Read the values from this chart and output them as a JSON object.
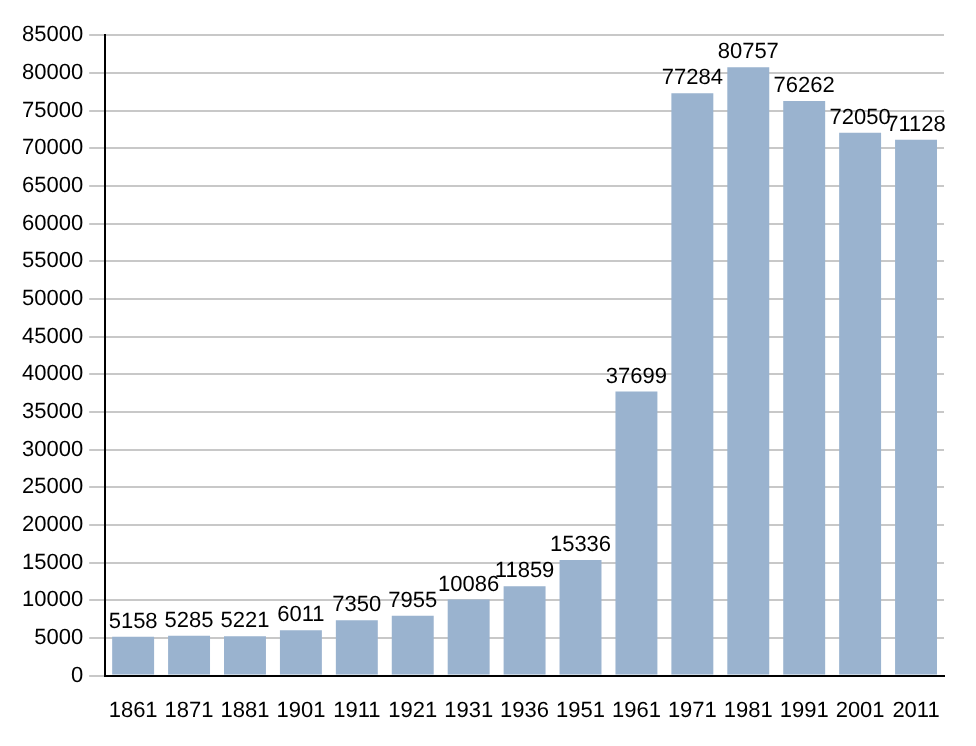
{
  "chart_data": {
    "type": "bar",
    "categories": [
      "1861",
      "1871",
      "1881",
      "1901",
      "1911",
      "1921",
      "1931",
      "1936",
      "1951",
      "1961",
      "1971",
      "1981",
      "1991",
      "2001",
      "2011"
    ],
    "values": [
      5158,
      5285,
      5221,
      6011,
      7350,
      7955,
      10086,
      11859,
      15336,
      37699,
      77284,
      80757,
      76262,
      72050,
      71128
    ],
    "color": "#9ab3cf",
    "ylim": [
      0,
      85000
    ],
    "yticks": [
      0,
      5000,
      10000,
      15000,
      20000,
      25000,
      30000,
      35000,
      40000,
      45000,
      50000,
      55000,
      60000,
      65000,
      70000,
      75000,
      80000,
      85000
    ],
    "grid": "y",
    "data_labels": true
  }
}
